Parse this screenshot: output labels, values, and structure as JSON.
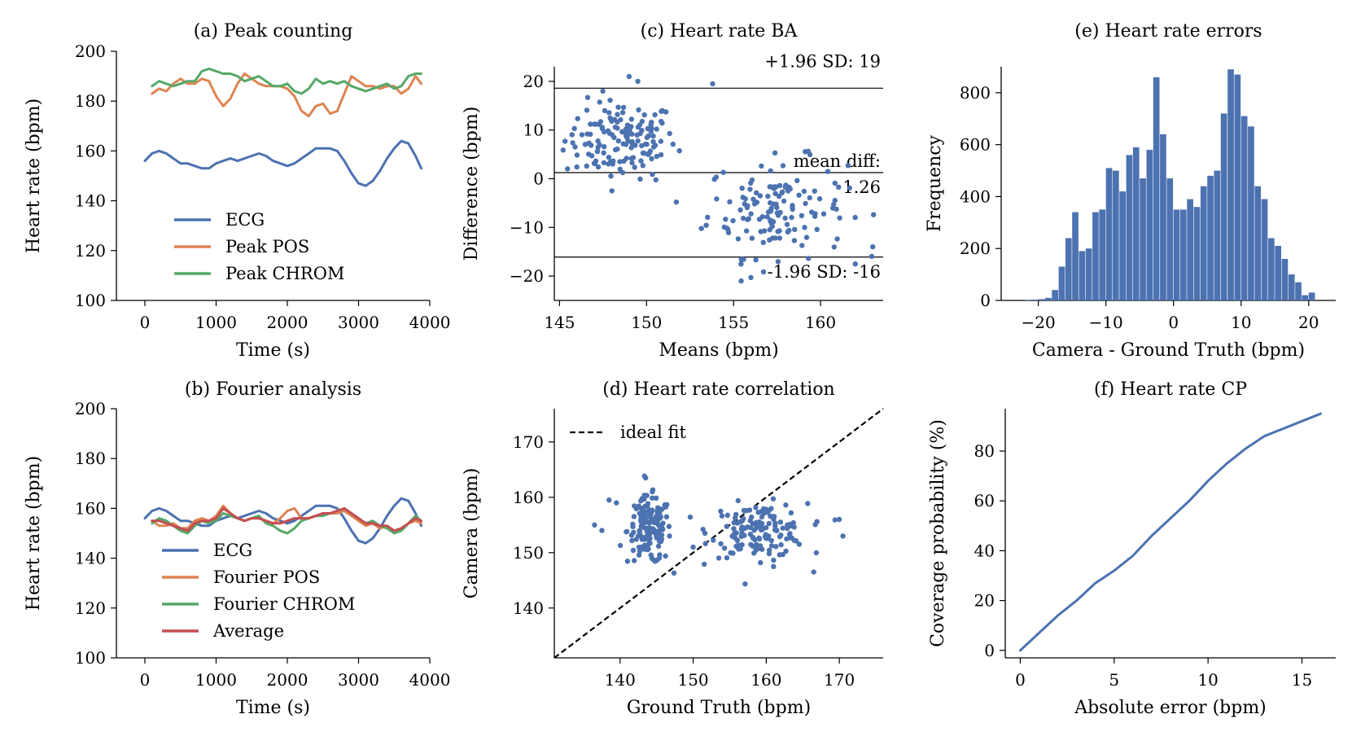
{
  "colors": {
    "blue": "#4c72b0",
    "orange": "#dd8452",
    "green": "#55a868",
    "red": "#c44e52"
  },
  "chart_data": [
    {
      "id": "a",
      "type": "line",
      "title": "(a) Peak counting",
      "xlabel": "Time (s)",
      "ylabel": "Heart rate (bpm)",
      "xlim": [
        -400,
        4000
      ],
      "ylim": [
        100,
        200
      ],
      "xticks": [
        0,
        1000,
        2000,
        3000,
        4000
      ],
      "xtick_labels": [
        "0",
        "1000",
        "2000",
        "3000",
        "4000"
      ],
      "yticks": [
        100,
        120,
        140,
        160,
        180,
        200
      ],
      "ytick_labels": [
        "100",
        "120",
        "140",
        "160",
        "180",
        "200"
      ],
      "legend": "lower-center",
      "series": [
        {
          "name": "ECG",
          "color": "blue",
          "x": [
            0,
            100,
            200,
            300,
            400,
            500,
            600,
            700,
            800,
            900,
            1000,
            1100,
            1200,
            1300,
            1400,
            1500,
            1600,
            1700,
            1800,
            1900,
            2000,
            2100,
            2200,
            2300,
            2400,
            2500,
            2600,
            2700,
            2800,
            2900,
            3000,
            3100,
            3200,
            3300,
            3400,
            3500,
            3600,
            3700,
            3800,
            3880
          ],
          "y": [
            156,
            159,
            160,
            159,
            157,
            155,
            155,
            154,
            153,
            153,
            155,
            156,
            157,
            156,
            157,
            158,
            159,
            158,
            156,
            155,
            154,
            155,
            157,
            159,
            161,
            161,
            161,
            160,
            156,
            151,
            147,
            146,
            148,
            152,
            157,
            161,
            164,
            163,
            158,
            153
          ]
        },
        {
          "name": "Peak POS",
          "color": "orange",
          "x": [
            100,
            200,
            300,
            400,
            500,
            600,
            700,
            800,
            900,
            1000,
            1100,
            1200,
            1300,
            1400,
            1500,
            1600,
            1700,
            1800,
            1900,
            2000,
            2100,
            2200,
            2300,
            2400,
            2500,
            2600,
            2700,
            2800,
            2900,
            3000,
            3100,
            3200,
            3300,
            3400,
            3500,
            3600,
            3700,
            3800,
            3880
          ],
          "y": [
            183,
            185,
            184,
            187,
            189,
            187,
            187,
            189,
            188,
            182,
            178,
            181,
            187,
            191,
            189,
            187,
            186,
            186,
            186,
            185,
            182,
            176,
            174,
            178,
            179,
            175,
            176,
            183,
            190,
            188,
            186,
            186,
            185,
            186,
            186,
            183,
            185,
            190,
            187
          ]
        },
        {
          "name": "Peak CHROM",
          "color": "green",
          "x": [
            100,
            200,
            300,
            400,
            500,
            600,
            700,
            800,
            900,
            1000,
            1100,
            1200,
            1300,
            1400,
            1500,
            1600,
            1700,
            1800,
            1900,
            2000,
            2100,
            2200,
            2300,
            2400,
            2500,
            2600,
            2700,
            2800,
            2900,
            3000,
            3100,
            3200,
            3300,
            3400,
            3500,
            3600,
            3700,
            3800,
            3880
          ],
          "y": [
            186,
            188,
            187,
            186,
            187,
            188,
            188,
            192,
            193,
            192,
            191,
            191,
            190,
            188,
            189,
            190,
            188,
            186,
            186,
            187,
            184,
            183,
            185,
            189,
            187,
            188,
            187,
            188,
            186,
            185,
            184,
            185,
            186,
            187,
            185,
            186,
            190,
            191,
            191
          ]
        }
      ]
    },
    {
      "id": "b",
      "type": "line",
      "title": "(b) Fourier analysis",
      "xlabel": "Time (s)",
      "ylabel": "Heart rate (bpm)",
      "xlim": [
        -400,
        4000
      ],
      "ylim": [
        100,
        200
      ],
      "xticks": [
        0,
        1000,
        2000,
        3000,
        4000
      ],
      "xtick_labels": [
        "0",
        "1000",
        "2000",
        "3000",
        "4000"
      ],
      "yticks": [
        100,
        120,
        140,
        160,
        180,
        200
      ],
      "ytick_labels": [
        "100",
        "120",
        "140",
        "160",
        "180",
        "200"
      ],
      "legend": "lower-center",
      "series": [
        {
          "name": "ECG",
          "color": "blue",
          "x": [
            0,
            100,
            200,
            300,
            400,
            500,
            600,
            700,
            800,
            900,
            1000,
            1100,
            1200,
            1300,
            1400,
            1500,
            1600,
            1700,
            1800,
            1900,
            2000,
            2100,
            2200,
            2300,
            2400,
            2500,
            2600,
            2700,
            2800,
            2900,
            3000,
            3100,
            3200,
            3300,
            3400,
            3500,
            3600,
            3700,
            3800,
            3880
          ],
          "y": [
            156,
            159,
            160,
            159,
            157,
            155,
            155,
            154,
            153,
            153,
            155,
            156,
            157,
            156,
            157,
            158,
            159,
            158,
            156,
            155,
            154,
            155,
            157,
            159,
            161,
            161,
            161,
            160,
            156,
            151,
            147,
            146,
            148,
            152,
            157,
            161,
            164,
            163,
            158,
            153
          ]
        },
        {
          "name": "Fourier POS",
          "color": "orange",
          "x": [
            100,
            200,
            300,
            400,
            500,
            600,
            700,
            800,
            900,
            1000,
            1100,
            1200,
            1300,
            1400,
            1500,
            1600,
            1700,
            1800,
            1900,
            2000,
            2100,
            2200,
            2300,
            2400,
            2500,
            2600,
            2700,
            2800,
            2900,
            3000,
            3100,
            3200,
            3300,
            3400,
            3500,
            3600,
            3700,
            3800,
            3880
          ],
          "y": [
            155,
            153,
            153,
            154,
            152,
            152,
            155,
            156,
            155,
            157,
            161,
            158,
            156,
            155,
            156,
            156,
            155,
            154,
            156,
            159,
            160,
            156,
            156,
            157,
            158,
            158,
            158,
            159,
            157,
            155,
            153,
            154,
            152,
            153,
            151,
            152,
            154,
            155,
            154
          ]
        },
        {
          "name": "Fourier CHROM",
          "color": "green",
          "x": [
            100,
            200,
            300,
            400,
            500,
            600,
            700,
            800,
            900,
            1000,
            1100,
            1200,
            1300,
            1400,
            1500,
            1600,
            1700,
            1800,
            1900,
            2000,
            2100,
            2200,
            2300,
            2400,
            2500,
            2600,
            2700,
            2800,
            2900,
            3000,
            3100,
            3200,
            3300,
            3400,
            3500,
            3600,
            3700,
            3800,
            3880
          ],
          "y": [
            154,
            156,
            155,
            153,
            151,
            150,
            153,
            155,
            154,
            155,
            158,
            157,
            156,
            155,
            156,
            157,
            154,
            153,
            151,
            150,
            152,
            155,
            156,
            157,
            157,
            158,
            159,
            160,
            158,
            156,
            154,
            155,
            153,
            152,
            150,
            151,
            154,
            157,
            155
          ]
        },
        {
          "name": "Average",
          "color": "red",
          "x": [
            100,
            200,
            300,
            400,
            500,
            600,
            700,
            800,
            900,
            1000,
            1100,
            1200,
            1300,
            1400,
            1500,
            1600,
            1700,
            1800,
            1900,
            2000,
            2100,
            2200,
            2300,
            2400,
            2500,
            2600,
            2700,
            2800,
            2900,
            3000,
            3100,
            3200,
            3300,
            3400,
            3500,
            3600,
            3700,
            3800,
            3880
          ],
          "y": [
            155,
            155,
            154,
            153,
            152,
            151,
            154,
            155,
            155,
            156,
            160,
            158,
            156,
            155,
            156,
            156,
            155,
            154,
            154,
            155,
            156,
            156,
            156,
            157,
            158,
            158,
            159,
            160,
            158,
            156,
            154,
            154,
            153,
            153,
            151,
            152,
            154,
            156,
            155
          ]
        }
      ]
    },
    {
      "id": "c",
      "type": "scatter",
      "title": "(c) Heart rate BA",
      "xlabel": "Means (bpm)",
      "ylabel": "Difference (bpm)",
      "xlim": [
        144.7,
        163.6
      ],
      "ylim": [
        -25,
        23
      ],
      "xticks": [
        145,
        150,
        155,
        160
      ],
      "xtick_labels": [
        "145",
        "150",
        "155",
        "160"
      ],
      "yticks": [
        -20,
        -10,
        0,
        10,
        20
      ],
      "ytick_labels": [
        "−20",
        "−10",
        "0",
        "10",
        "20"
      ],
      "hlines": [
        {
          "y": 18.6,
          "label_top": "+1.96 SD: 19"
        },
        {
          "y": 1.26,
          "label_top": "mean diff:",
          "label_bottom": "1.26"
        },
        {
          "y": -16.1,
          "label_bottom": "-1.96 SD: -16"
        }
      ]
    },
    {
      "id": "d",
      "type": "scatter",
      "title": "(d) Heart rate correlation",
      "xlabel": "Ground Truth (bpm)",
      "ylabel": "Camera (bpm)",
      "xlim": [
        131,
        176
      ],
      "ylim": [
        131,
        176
      ],
      "xticks": [
        140,
        150,
        160,
        170
      ],
      "xtick_labels": [
        "140",
        "150",
        "160",
        "170"
      ],
      "yticks": [
        140,
        150,
        160,
        170
      ],
      "ytick_labels": [
        "140",
        "150",
        "160",
        "170"
      ],
      "legend_label": "ideal fit"
    },
    {
      "id": "e",
      "type": "bar",
      "title": "(e) Heart rate errors",
      "xlabel": "Camera - Ground Truth (bpm)",
      "ylabel": "Frequency",
      "xlim": [
        -25.5,
        24
      ],
      "ylim": [
        0,
        900
      ],
      "xticks": [
        -20,
        -10,
        0,
        10,
        20
      ],
      "xtick_labels": [
        "−20",
        "−10",
        "0",
        "10",
        "20"
      ],
      "yticks": [
        0,
        200,
        400,
        600,
        800
      ],
      "ytick_labels": [
        "0",
        "200",
        "400",
        "600",
        "800"
      ],
      "bin_start": -22,
      "bin_width": 1,
      "values": [
        2,
        3,
        5,
        10,
        40,
        130,
        240,
        340,
        190,
        200,
        340,
        350,
        510,
        500,
        420,
        560,
        590,
        470,
        580,
        860,
        640,
        470,
        350,
        350,
        390,
        360,
        440,
        480,
        500,
        720,
        890,
        870,
        710,
        670,
        440,
        390,
        240,
        210,
        160,
        100,
        70,
        20,
        30
      ]
    },
    {
      "id": "f",
      "type": "line",
      "title": "(f) Heart rate CP",
      "xlabel": "Absolute error (bpm)",
      "ylabel": "Coverage probability (%)",
      "xlim": [
        -0.8,
        16.8
      ],
      "ylim": [
        -3,
        97
      ],
      "xticks": [
        0,
        5,
        10,
        15
      ],
      "xtick_labels": [
        "0",
        "5",
        "10",
        "15"
      ],
      "yticks": [
        0,
        20,
        40,
        60,
        80
      ],
      "ytick_labels": [
        "0",
        "20",
        "40",
        "60",
        "80"
      ],
      "series": [
        {
          "name": "CP",
          "color": "blue",
          "x": [
            0,
            1,
            2,
            3,
            4,
            5,
            6,
            7,
            8,
            9,
            10,
            11,
            12,
            13,
            14,
            15,
            16
          ],
          "y": [
            0,
            7,
            14,
            20,
            27,
            32,
            38,
            46,
            53,
            60,
            68,
            75,
            81,
            86,
            89,
            92,
            95
          ]
        }
      ]
    }
  ]
}
